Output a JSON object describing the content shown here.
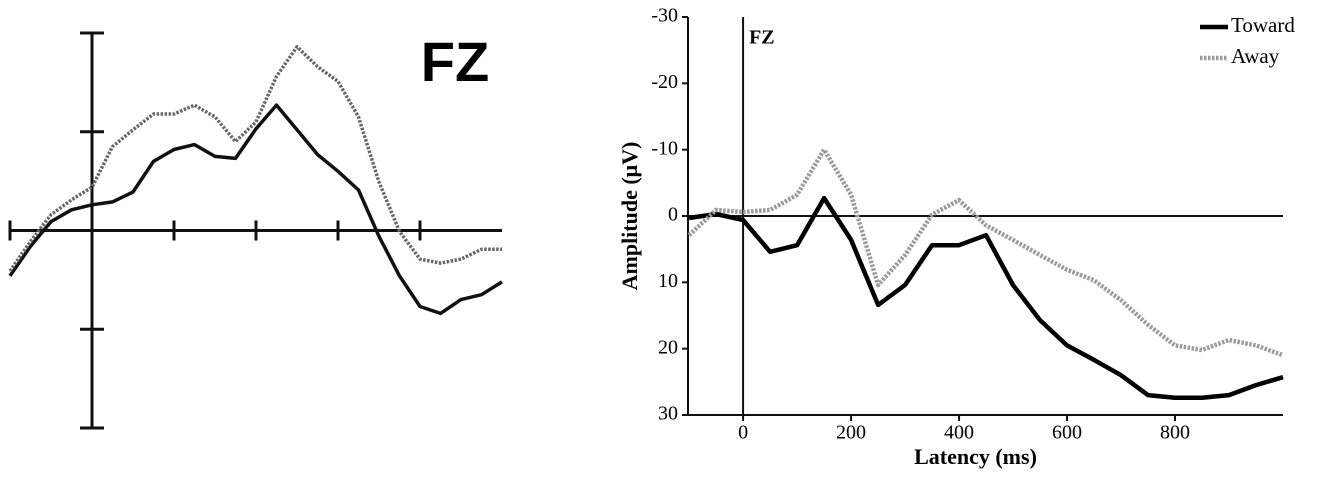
{
  "chart_data": [
    {
      "type": "line",
      "title": "FZ",
      "axes": "cross",
      "x": [
        -1,
        -0.75,
        -0.5,
        -0.25,
        0,
        0.25,
        0.5,
        0.75,
        1,
        1.25,
        1.5,
        1.75,
        2,
        2.25,
        2.5,
        2.75,
        3,
        3.25,
        3.5,
        3.75,
        4,
        4.25,
        4.5,
        4.75,
        5
      ],
      "series": [
        {
          "color": "#111111",
          "line_style": "solid",
          "values": [
            -0.46,
            -0.16,
            0.09,
            0.21,
            0.26,
            0.29,
            0.39,
            0.7,
            0.82,
            0.87,
            0.75,
            0.73,
            1.03,
            1.27,
            1.02,
            0.77,
            0.6,
            0.41,
            -0.06,
            -0.46,
            -0.77,
            -0.84,
            -0.7,
            -0.65,
            -0.52
          ]
        },
        {
          "color": "#666666",
          "line_style": "dotted",
          "values": [
            -0.41,
            -0.11,
            0.16,
            0.31,
            0.44,
            0.85,
            1.02,
            1.18,
            1.18,
            1.27,
            1.15,
            0.9,
            1.1,
            1.56,
            1.86,
            1.66,
            1.51,
            1.15,
            0.49,
            -0.01,
            -0.29,
            -0.33,
            -0.29,
            -0.19,
            -0.19
          ]
        }
      ],
      "xlim": [
        -1,
        5
      ],
      "xticks": [
        -1,
        0,
        1,
        2,
        3,
        4
      ],
      "ylim": [
        -2,
        2
      ],
      "yticks": [
        -2,
        -1,
        0,
        1,
        2
      ]
    },
    {
      "type": "line",
      "title": "FZ",
      "axes": "box",
      "zero_lines": true,
      "legend": "upper right",
      "x_label": "Latency (ms)",
      "y_label": "Amplitude (μV)",
      "x": [
        -100,
        -50,
        0,
        50,
        100,
        150,
        200,
        250,
        300,
        350,
        400,
        450,
        500,
        550,
        600,
        650,
        700,
        750,
        800,
        850,
        900,
        950,
        1000
      ],
      "series": [
        {
          "name": "Toward",
          "color": "#000000",
          "line_style": "solid",
          "values": [
            0.3,
            -0.3,
            0.6,
            5.4,
            4.4,
            -2.7,
            3.6,
            13.4,
            10.4,
            4.4,
            4.4,
            2.9,
            10.4,
            15.7,
            19.5,
            21.7,
            24.0,
            27.0,
            27.4,
            27.4,
            27.0,
            25.5,
            24.3
          ]
        },
        {
          "name": "Away",
          "color": "#9a9a9a",
          "line_style": "dotted",
          "values": [
            2.9,
            -0.9,
            -0.6,
            -0.9,
            -3.2,
            -10.0,
            -3.2,
            10.4,
            5.9,
            -0.2,
            -2.4,
            1.4,
            3.6,
            5.9,
            8.1,
            9.7,
            12.7,
            16.4,
            19.5,
            20.2,
            18.7,
            19.5,
            21.0
          ]
        }
      ],
      "xlim": [
        -102,
        1000
      ],
      "xticks": [
        0,
        200,
        400,
        600,
        800
      ],
      "ylim": [
        30,
        -30
      ],
      "yticks": [
        -30,
        -20,
        -10,
        0,
        10,
        20,
        30
      ]
    }
  ]
}
